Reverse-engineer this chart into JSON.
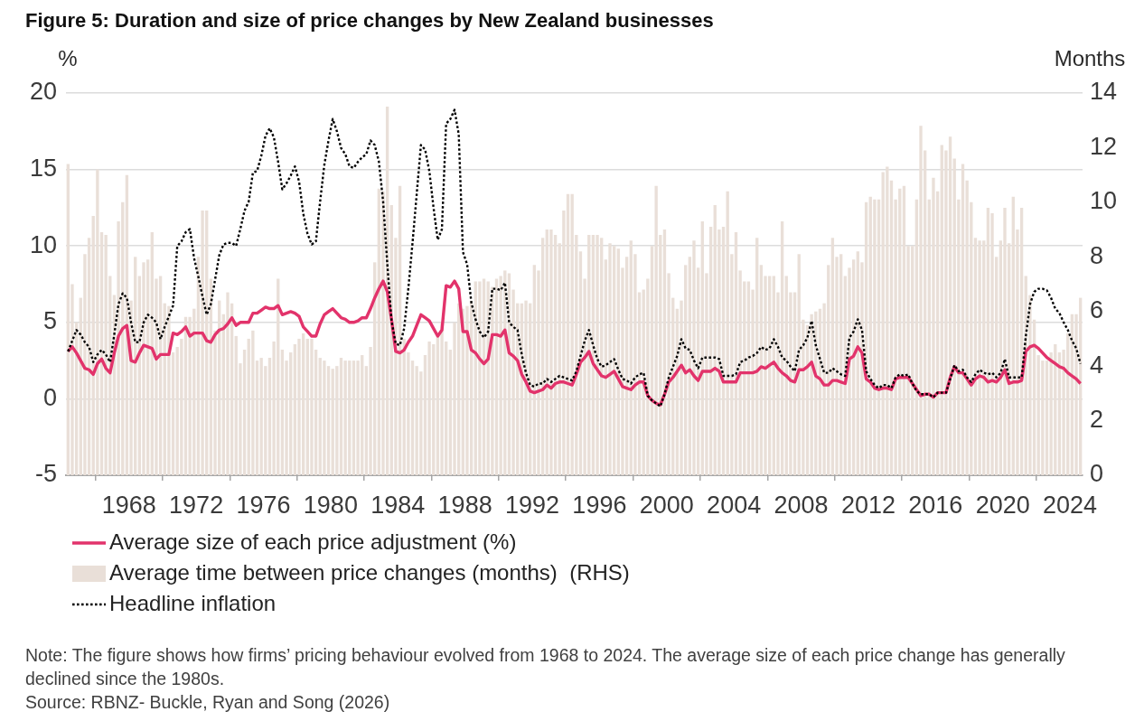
{
  "chart_data": {
    "type": "line",
    "title": "Figure 5: Duration and size of price changes by New Zealand businesses",
    "ylabel": "%",
    "y2label": "Months",
    "annotations": [
      "Note: The figure shows how firms’ pricing behaviour evolved from 1968 to 2024. The average size of each price change has generally declined since the 1980s.",
      "Source: RBNZ- Buckle, Ryan and Song (2026)"
    ],
    "x": [
      1964.375,
      1964.625,
      1964.875,
      1965.125,
      1965.375,
      1965.625,
      1965.875,
      1966.125,
      1966.375,
      1966.625,
      1966.875,
      1967.125,
      1967.375,
      1967.625,
      1967.875,
      1968.125,
      1968.375,
      1968.625,
      1968.875,
      1969.125,
      1969.375,
      1969.625,
      1969.875,
      1970.125,
      1970.375,
      1970.625,
      1970.875,
      1971.125,
      1971.375,
      1971.625,
      1971.875,
      1972.125,
      1972.375,
      1972.625,
      1972.875,
      1973.125,
      1973.375,
      1973.625,
      1973.875,
      1974.125,
      1974.375,
      1974.625,
      1974.875,
      1975.125,
      1975.375,
      1975.625,
      1975.875,
      1976.125,
      1976.375,
      1976.625,
      1976.875,
      1977.125,
      1977.375,
      1977.625,
      1977.875,
      1978.125,
      1978.375,
      1978.625,
      1978.875,
      1979.125,
      1979.375,
      1979.625,
      1979.875,
      1980.125,
      1980.375,
      1980.625,
      1980.875,
      1981.125,
      1981.375,
      1981.625,
      1981.875,
      1982.125,
      1982.375,
      1982.625,
      1982.875,
      1983.125,
      1983.375,
      1983.625,
      1983.875,
      1984.125,
      1984.375,
      1984.625,
      1984.875,
      1985.125,
      1985.375,
      1985.625,
      1985.875,
      1986.125,
      1986.375,
      1986.625,
      1986.875,
      1987.125,
      1987.375,
      1987.625,
      1987.875,
      1988.125,
      1988.375,
      1988.625,
      1988.875,
      1989.125,
      1989.375,
      1989.625,
      1989.875,
      1990.125,
      1990.375,
      1990.625,
      1990.875,
      1991.125,
      1991.375,
      1991.625,
      1991.875,
      1992.125,
      1992.375,
      1992.625,
      1992.875,
      1993.125,
      1993.375,
      1993.625,
      1993.875,
      1994.125,
      1994.375,
      1994.625,
      1994.875,
      1995.125,
      1995.375,
      1995.625,
      1995.875,
      1996.125,
      1996.375,
      1996.625,
      1996.875,
      1997.125,
      1997.375,
      1997.625,
      1997.875,
      1998.125,
      1998.375,
      1998.625,
      1998.875,
      1999.125,
      1999.375,
      1999.625,
      1999.875,
      2000.125,
      2000.375,
      2000.625,
      2000.875,
      2001.125,
      2001.375,
      2001.625,
      2001.875,
      2002.125,
      2002.375,
      2002.625,
      2002.875,
      2003.125,
      2003.375,
      2003.625,
      2003.875,
      2004.125,
      2004.375,
      2004.625,
      2004.875,
      2005.125,
      2005.375,
      2005.625,
      2005.875,
      2006.125,
      2006.375,
      2006.625,
      2006.875,
      2007.125,
      2007.375,
      2007.625,
      2007.875,
      2008.125,
      2008.375,
      2008.625,
      2008.875,
      2009.125,
      2009.375,
      2009.625,
      2009.875,
      2010.125,
      2010.375,
      2010.625,
      2010.875,
      2011.125,
      2011.375,
      2011.625,
      2011.875,
      2012.125,
      2012.375,
      2012.625,
      2012.875,
      2013.125,
      2013.375,
      2013.625,
      2013.875,
      2014.125,
      2014.375,
      2014.625,
      2014.875,
      2015.125,
      2015.375,
      2015.625,
      2015.875,
      2016.125,
      2016.375,
      2016.625,
      2016.875,
      2017.125,
      2017.375,
      2017.625,
      2017.875,
      2018.125,
      2018.375,
      2018.625,
      2018.875,
      2019.125,
      2019.375,
      2019.625,
      2019.875,
      2020.125,
      2020.375,
      2020.625,
      2020.875,
      2021.125,
      2021.375,
      2021.625,
      2021.875,
      2022.125,
      2022.375,
      2022.625,
      2022.875,
      2023.125,
      2023.375,
      2023.625,
      2023.875,
      2024.125,
      2024.375,
      2024.625
    ],
    "xlim": [
      1964.25,
      2024.75
    ],
    "xticks": [
      1968,
      1972,
      1976,
      1980,
      1984,
      1988,
      1992,
      1996,
      2000,
      2004,
      2008,
      2012,
      2016,
      2020,
      2024
    ],
    "ylim": [
      -5,
      20
    ],
    "yticks": [
      -5,
      0,
      5,
      10,
      15,
      20
    ],
    "y2lim": [
      0,
      14
    ],
    "y2ticks": [
      0,
      2,
      4,
      6,
      8,
      10,
      12,
      14
    ],
    "grid": "y",
    "legend": "bottom",
    "series": [
      {
        "name": "Average size of each price adjustment (%)",
        "color": "#e2336b",
        "line_style": "solid",
        "values": [
          3.1,
          3.4,
          3.0,
          2.5,
          2.0,
          1.9,
          1.6,
          2.3,
          2.6,
          2.0,
          1.7,
          3.0,
          4.1,
          4.6,
          4.8,
          2.5,
          2.4,
          3.0,
          3.5,
          3.4,
          3.3,
          2.6,
          2.9,
          2.9,
          2.9,
          4.3,
          4.2,
          4.4,
          4.7,
          4.1,
          4.3,
          4.3,
          4.3,
          3.8,
          3.7,
          4.2,
          4.5,
          4.6,
          4.9,
          5.3,
          4.8,
          5.0,
          5.0,
          5.0,
          5.6,
          5.6,
          5.8,
          6.0,
          5.9,
          5.9,
          6.1,
          5.5,
          5.6,
          5.7,
          5.6,
          5.4,
          4.7,
          4.4,
          4.1,
          4.1,
          4.9,
          5.5,
          5.7,
          5.9,
          5.6,
          5.3,
          5.2,
          5.0,
          5.0,
          5.1,
          5.3,
          5.3,
          5.9,
          6.6,
          7.2,
          7.7,
          7.0,
          5.2,
          3.1,
          3.0,
          3.2,
          3.7,
          4.1,
          4.8,
          5.5,
          5.3,
          5.1,
          4.6,
          4.1,
          4.5,
          7.4,
          7.3,
          7.7,
          7.2,
          4.4,
          4.4,
          3.2,
          3.0,
          2.6,
          2.3,
          2.6,
          4.2,
          4.2,
          4.1,
          4.5,
          3.0,
          2.8,
          2.5,
          1.6,
          1.1,
          0.5,
          0.4,
          0.5,
          0.6,
          0.9,
          0.7,
          1.0,
          1.1,
          1.1,
          1.0,
          0.9,
          1.6,
          2.4,
          2.7,
          3.1,
          2.3,
          1.9,
          1.5,
          1.4,
          1.6,
          1.8,
          1.3,
          0.8,
          0.7,
          0.6,
          0.9,
          1.1,
          1.1,
          0.2,
          -0.1,
          -0.3,
          -0.4,
          0.3,
          1.1,
          1.4,
          1.8,
          2.2,
          1.7,
          1.9,
          1.5,
          1.2,
          1.8,
          1.8,
          1.8,
          2.0,
          1.8,
          1.1,
          1.1,
          1.1,
          1.1,
          1.7,
          1.7,
          1.7,
          1.7,
          1.8,
          2.1,
          2.0,
          2.2,
          2.4,
          2.0,
          1.7,
          1.5,
          1.2,
          1.1,
          1.9,
          1.9,
          2.1,
          2.4,
          1.5,
          1.3,
          0.9,
          0.9,
          1.2,
          1.2,
          1.1,
          1.0,
          2.6,
          2.8,
          3.4,
          3.0,
          1.3,
          1.1,
          0.7,
          0.6,
          0.7,
          0.7,
          0.6,
          1.3,
          1.4,
          1.4,
          1.4,
          1.0,
          0.6,
          0.2,
          0.3,
          0.3,
          0.1,
          0.4,
          0.4,
          0.4,
          1.4,
          2.1,
          1.7,
          1.7,
          1.3,
          0.9,
          1.3,
          1.5,
          1.4,
          1.1,
          1.2,
          1.1,
          1.4,
          1.9,
          1.0,
          1.1,
          1.1,
          1.2,
          3.1,
          3.4,
          3.5,
          3.3,
          3.0,
          2.7,
          2.5,
          2.3,
          2.1,
          2.0,
          1.7,
          1.5,
          1.3,
          1.0
        ]
      },
      {
        "name": "Average time between price changes (months)  (RHS)",
        "type": "bar",
        "axis": "y2",
        "color": "#e9dfd8",
        "values": [
          11.4,
          7.0,
          5.6,
          6.5,
          8.1,
          8.7,
          9.5,
          11.2,
          8.9,
          8.8,
          7.3,
          6.6,
          9.3,
          10.0,
          11.0,
          6.4,
          8.0,
          7.3,
          7.8,
          7.9,
          8.9,
          7.2,
          7.3,
          6.3,
          6.2,
          4.5,
          4.7,
          5.0,
          5.8,
          5.8,
          6.1,
          8.0,
          9.7,
          9.7,
          7.2,
          5.3,
          6.4,
          5.9,
          6.7,
          6.3,
          5.1,
          4.1,
          4.6,
          5.0,
          5.3,
          4.2,
          4.3,
          4.0,
          4.3,
          4.9,
          7.2,
          4.6,
          4.2,
          4.5,
          4.8,
          5.0,
          5.2,
          5.0,
          5.0,
          4.6,
          4.3,
          4.2,
          4.0,
          3.9,
          4.0,
          4.3,
          4.2,
          4.2,
          4.2,
          4.2,
          4.4,
          4.0,
          4.7,
          7.8,
          10.5,
          10.4,
          13.5,
          9.9,
          8.7,
          10.6,
          5.0,
          4.5,
          4.2,
          4.0,
          3.8,
          4.4,
          4.9,
          4.8,
          5.2,
          5.6,
          4.9,
          4.6,
          5.6,
          6.3,
          6.1,
          6.2,
          6.4,
          7.1,
          7.1,
          7.2,
          7.1,
          6.9,
          7.2,
          7.3,
          7.5,
          7.4,
          6.8,
          6.3,
          6.3,
          6.4,
          6.3,
          7.7,
          7.5,
          8.7,
          9.0,
          9.0,
          8.8,
          8.5,
          9.7,
          10.3,
          10.3,
          8.8,
          8.2,
          7.2,
          8.8,
          8.8,
          8.8,
          8.7,
          7.9,
          8.5,
          8.4,
          8.3,
          7.6,
          8.0,
          8.6,
          8.1,
          6.7,
          6.8,
          7.2,
          8.4,
          10.6,
          8.8,
          9.0,
          7.4,
          6.5,
          6.1,
          6.4,
          7.7,
          8.0,
          8.6,
          7.6,
          9.3,
          7.4,
          9.1,
          9.9,
          9.0,
          9.1,
          10.4,
          8.1,
          8.9,
          7.5,
          7.1,
          7.1,
          6.8,
          8.7,
          7.7,
          7.3,
          7.3,
          7.3,
          6.7,
          9.3,
          7.3,
          6.7,
          6.7,
          8.1,
          5.7,
          5.5,
          5.9,
          6.0,
          6.1,
          6.3,
          7.7,
          8.7,
          8.0,
          8.1,
          7.3,
          7.6,
          7.9,
          8.2,
          7.8,
          10.0,
          10.2,
          10.1,
          10.1,
          11.1,
          11.3,
          10.8,
          10.1,
          10.5,
          10.6,
          8.4,
          8.4,
          10.1,
          12.8,
          11.9,
          10.1,
          10.9,
          10.4,
          12.1,
          11.9,
          12.4,
          11.6,
          10.1,
          11.4,
          10.8,
          10.0,
          8.7,
          8.6,
          8.6,
          9.8,
          9.6,
          8.0,
          8.6,
          9.8,
          8.5,
          10.2,
          9.0,
          9.8,
          7.3,
          6.6,
          5.7,
          4.4,
          4.2,
          4.2,
          4.5,
          4.8,
          4.5,
          4.6,
          5.2,
          5.9,
          5.9,
          6.5
        ]
      },
      {
        "name": "Headline inflation",
        "color": "#000000",
        "line_style": "dotted",
        "values": [
          3.1,
          3.8,
          4.5,
          4.2,
          3.7,
          3.4,
          2.4,
          2.9,
          3.2,
          2.9,
          2.4,
          4.2,
          6.2,
          6.9,
          6.6,
          5.0,
          3.7,
          3.7,
          5.0,
          5.5,
          5.3,
          5.0,
          3.9,
          4.7,
          5.4,
          6.1,
          10.0,
          10.3,
          10.9,
          11.1,
          9.2,
          8.0,
          6.7,
          5.5,
          6.2,
          7.8,
          9.4,
          10.1,
          10.2,
          10.2,
          10.0,
          11.1,
          12.3,
          12.9,
          14.8,
          14.9,
          15.9,
          17.2,
          17.7,
          17.1,
          15.5,
          13.7,
          14.1,
          14.6,
          15.2,
          14.2,
          12.1,
          10.8,
          10.1,
          10.3,
          12.9,
          15.3,
          16.9,
          18.3,
          17.5,
          16.4,
          16.0,
          15.2,
          15.1,
          15.5,
          15.8,
          16.0,
          16.9,
          16.6,
          15.5,
          12.9,
          8.8,
          5.1,
          3.6,
          3.5,
          4.6,
          7.2,
          10.2,
          13.4,
          16.6,
          16.3,
          14.9,
          12.5,
          10.4,
          11.1,
          18.0,
          18.3,
          18.9,
          17.3,
          9.6,
          8.8,
          6.3,
          5.2,
          4.4,
          4.0,
          4.4,
          7.2,
          7.2,
          7.1,
          7.6,
          5.0,
          4.7,
          4.5,
          2.9,
          1.7,
          0.9,
          0.8,
          1.0,
          1.0,
          1.3,
          1.1,
          1.3,
          1.5,
          1.4,
          1.3,
          1.2,
          1.8,
          2.8,
          3.8,
          4.5,
          3.5,
          2.6,
          2.1,
          2.2,
          2.4,
          2.6,
          1.9,
          1.3,
          1.2,
          1.0,
          1.4,
          1.6,
          1.7,
          0.2,
          -0.1,
          -0.3,
          -0.5,
          0.3,
          1.4,
          2.1,
          2.8,
          3.9,
          3.3,
          3.2,
          2.5,
          2.0,
          2.7,
          2.7,
          2.7,
          2.7,
          2.6,
          1.5,
          1.5,
          1.5,
          1.6,
          2.4,
          2.5,
          2.7,
          2.8,
          3.0,
          3.4,
          3.2,
          3.3,
          3.9,
          3.4,
          2.7,
          2.5,
          2.1,
          1.8,
          3.2,
          3.5,
          4.0,
          5.1,
          3.5,
          2.6,
          1.7,
          1.7,
          2.0,
          1.8,
          1.6,
          1.5,
          4.0,
          4.4,
          5.2,
          4.5,
          1.8,
          1.3,
          0.9,
          0.7,
          0.9,
          0.9,
          0.7,
          1.4,
          1.6,
          1.5,
          1.6,
          1.0,
          0.5,
          0.3,
          0.3,
          0.3,
          0.1,
          0.4,
          0.4,
          0.4,
          1.3,
          2.2,
          1.8,
          1.9,
          1.4,
          1.1,
          1.6,
          1.9,
          1.7,
          1.6,
          1.7,
          1.4,
          1.7,
          2.6,
          1.4,
          1.4,
          1.4,
          1.4,
          4.1,
          6.2,
          7.0,
          7.2,
          7.2,
          7.1,
          6.6,
          5.9,
          5.6,
          5.0,
          4.5,
          3.8,
          3.3,
          2.3
        ]
      }
    ]
  }
}
